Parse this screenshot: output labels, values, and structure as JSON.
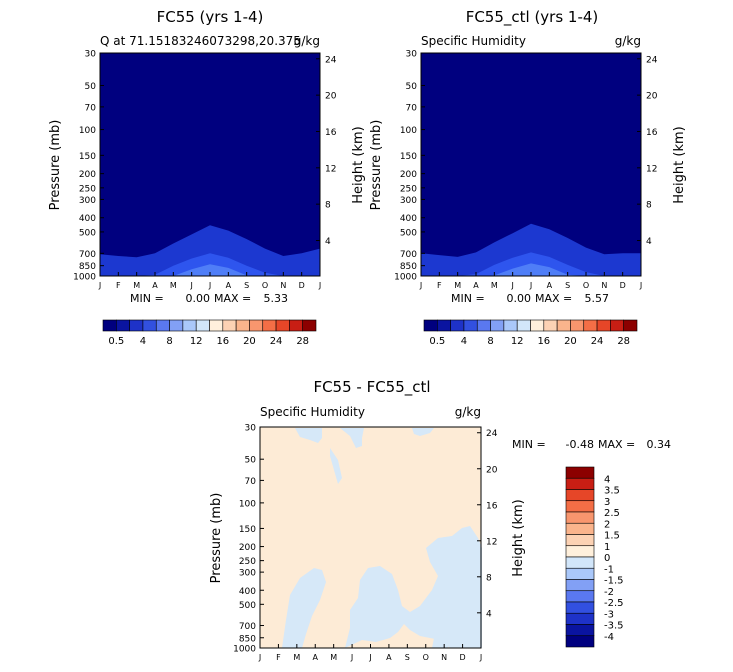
{
  "chart_data": [
    {
      "type": "heatmap",
      "title": "FC55 (yrs 1-4)",
      "subtitle_left": "Q at 71.15183246073298,20.375",
      "subtitle_right": "g/kg",
      "ylabel": "Pressure (mb)",
      "ylabel_right": "Height (km)",
      "x_ticks": [
        "J",
        "F",
        "M",
        "A",
        "M",
        "J",
        "J",
        "A",
        "S",
        "O",
        "N",
        "D",
        "J"
      ],
      "y_ticks": [
        "30",
        "50",
        "70",
        "100",
        "150",
        "200",
        "250",
        "300",
        "400",
        "500",
        "700",
        "850",
        "1000"
      ],
      "y_ticks_right": [
        "24",
        "20",
        "16",
        "12",
        "8",
        "4"
      ],
      "min_label": "MIN =",
      "min_value": "0.00",
      "max_label": "MAX =",
      "max_value": "5.33",
      "months": [
        "J",
        "F",
        "M",
        "A",
        "M",
        "J",
        "J",
        "A",
        "S",
        "O",
        "N",
        "D",
        "J"
      ],
      "contours": [
        {
          "level": 0.5,
          "pressure_mb": [
            710,
            730,
            745,
            700,
            600,
            520,
            450,
            490,
            560,
            650,
            730,
            700,
            650
          ]
        },
        {
          "level": 2,
          "pressure_mb": [
            1000,
            1000,
            1000,
            980,
            850,
            760,
            700,
            750,
            850,
            950,
            1000,
            1000,
            1000
          ]
        },
        {
          "level": 4,
          "pressure_mb": [
            1000,
            1000,
            1000,
            1000,
            1000,
            900,
            830,
            880,
            990,
            1000,
            1000,
            1000,
            1000
          ]
        }
      ]
    },
    {
      "type": "heatmap",
      "title": "FC55_ctl (yrs 1-4)",
      "subtitle_left": "Specific Humidity",
      "subtitle_right": "g/kg",
      "ylabel": "Pressure (mb)",
      "ylabel_right": "Height (km)",
      "x_ticks": [
        "J",
        "F",
        "M",
        "A",
        "M",
        "J",
        "J",
        "A",
        "S",
        "O",
        "N",
        "D",
        "J"
      ],
      "y_ticks": [
        "30",
        "50",
        "70",
        "100",
        "150",
        "200",
        "250",
        "300",
        "400",
        "500",
        "700",
        "850",
        "1000"
      ],
      "y_ticks_right": [
        "24",
        "20",
        "16",
        "12",
        "8",
        "4"
      ],
      "min_label": "MIN =",
      "min_value": "0.00",
      "max_label": "MAX =",
      "max_value": "5.57",
      "months": [
        "J",
        "F",
        "M",
        "A",
        "M",
        "J",
        "J",
        "A",
        "S",
        "O",
        "N",
        "D",
        "J"
      ],
      "contours": [
        {
          "level": 0.5,
          "pressure_mb": [
            700,
            720,
            740,
            690,
            590,
            510,
            440,
            480,
            550,
            640,
            710,
            700,
            700
          ]
        },
        {
          "level": 2,
          "pressure_mb": [
            1000,
            1000,
            1000,
            970,
            840,
            750,
            690,
            740,
            840,
            940,
            1000,
            1000,
            1000
          ]
        },
        {
          "level": 4,
          "pressure_mb": [
            1000,
            1000,
            1000,
            1000,
            990,
            890,
            820,
            870,
            980,
            1000,
            1000,
            1000,
            1000
          ]
        }
      ]
    },
    {
      "type": "heatmap",
      "title": "FC55 - FC55_ctl",
      "subtitle_left": "Specific Humidity",
      "subtitle_right": "g/kg",
      "ylabel": "Pressure (mb)",
      "ylabel_right": "Height (km)",
      "x_ticks": [
        "J",
        "F",
        "M",
        "A",
        "M",
        "J",
        "J",
        "A",
        "S",
        "O",
        "N",
        "D",
        "J"
      ],
      "y_ticks": [
        "30",
        "50",
        "70",
        "100",
        "150",
        "200",
        "250",
        "300",
        "400",
        "500",
        "700",
        "850",
        "1000"
      ],
      "y_ticks_right": [
        "24",
        "20",
        "16",
        "12",
        "8",
        "4"
      ],
      "min_label": "MIN =",
      "min_value": "-0.48",
      "max_label": "MAX =",
      "max_value": "0.34",
      "background_level": "0 to 0.5",
      "negative_regions_level": "-0.5 to 0"
    }
  ],
  "colorbar_top": {
    "colors": [
      "#00007f",
      "#0a14a0",
      "#1e32c8",
      "#3250e0",
      "#5a78f0",
      "#82a0f5",
      "#aac8fa",
      "#d2e6fa",
      "#fff0dc",
      "#fcd2b4",
      "#fab48c",
      "#f8966e",
      "#f46e46",
      "#e64628",
      "#c81e14",
      "#8c0000"
    ],
    "labels": [
      "0.5",
      "4",
      "8",
      "12",
      "16",
      "20",
      "24",
      "28"
    ]
  },
  "colorbar_diff": {
    "colors": [
      "#00007f",
      "#0a14a0",
      "#1e32c8",
      "#3250e0",
      "#5a78f0",
      "#82a0f5",
      "#aac8fa",
      "#d2e6fa",
      "#fff0dc",
      "#fcd2b4",
      "#fab48c",
      "#f8966e",
      "#f46e46",
      "#e64628",
      "#c81e14",
      "#8c0000"
    ],
    "labels": [
      "4",
      "3.5",
      "3",
      "2.5",
      "2",
      "1.5",
      "1",
      "0",
      "-1",
      "-1.5",
      "-2",
      "-2.5",
      "-3",
      "-3.5",
      "-4"
    ]
  }
}
